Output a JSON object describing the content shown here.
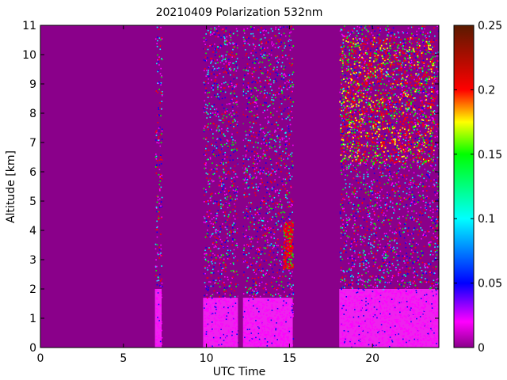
{
  "chart_data": {
    "type": "heatmap",
    "title": "20210409 Polarization 532nm",
    "xlabel": "UTC Time",
    "ylabel": "Altitude [km]",
    "xlim": [
      0,
      24
    ],
    "ylim": [
      0,
      11
    ],
    "x_ticks": [
      0,
      5,
      10,
      15,
      20
    ],
    "y_ticks": [
      0,
      1,
      2,
      3,
      4,
      5,
      6,
      7,
      8,
      9,
      10,
      11
    ],
    "colorbar": {
      "min": 0,
      "max": 0.25,
      "ticks": [
        0,
        0.05,
        0.1,
        0.15,
        0.2,
        0.25
      ],
      "colormap": "jet-like (magenta → blue → cyan → green → yellow → red → dark red)"
    },
    "background_color": "#8a008a",
    "measurement_periods": [
      {
        "start": 6.9,
        "end": 7.3,
        "boundary_layer_top": 2.0
      },
      {
        "start": 9.8,
        "end": 15.2,
        "boundary_layer_top": 1.7,
        "data_gap": [
          11.9,
          12.2
        ]
      },
      {
        "start": 18.0,
        "end": 24.0,
        "boundary_layer_top": 2.0
      }
    ],
    "features": [
      {
        "name": "high depolarization column",
        "x": 14.9,
        "altitude": [
          2.7,
          4.3
        ],
        "value": 0.22
      },
      {
        "name": "upper cloud layer",
        "x_range": [
          18.0,
          23.7
        ],
        "altitude": [
          6.3,
          10.6
        ],
        "value": 0.18
      }
    ]
  }
}
